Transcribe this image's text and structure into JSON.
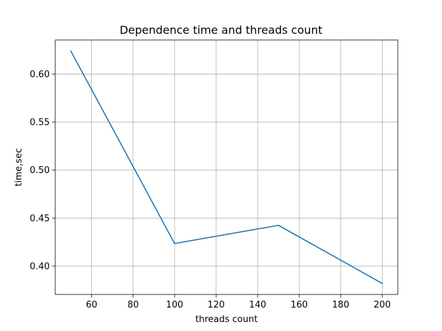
{
  "chart_data": {
    "type": "line",
    "title": "Dependence time and threads count",
    "xlabel": "threads count",
    "ylabel": "time,sec",
    "xlim": [
      42.5,
      207.5
    ],
    "ylim": [
      0.3705,
      0.6355
    ],
    "xticks": [
      60,
      80,
      100,
      120,
      140,
      160,
      180,
      200
    ],
    "yticks": [
      0.4,
      0.45,
      0.5,
      0.55,
      0.6
    ],
    "grid": true,
    "series": [
      {
        "x": [
          50,
          100,
          150,
          200
        ],
        "y": [
          0.624,
          0.4235,
          0.4425,
          0.382
        ],
        "color": "#1f77b4"
      }
    ]
  }
}
